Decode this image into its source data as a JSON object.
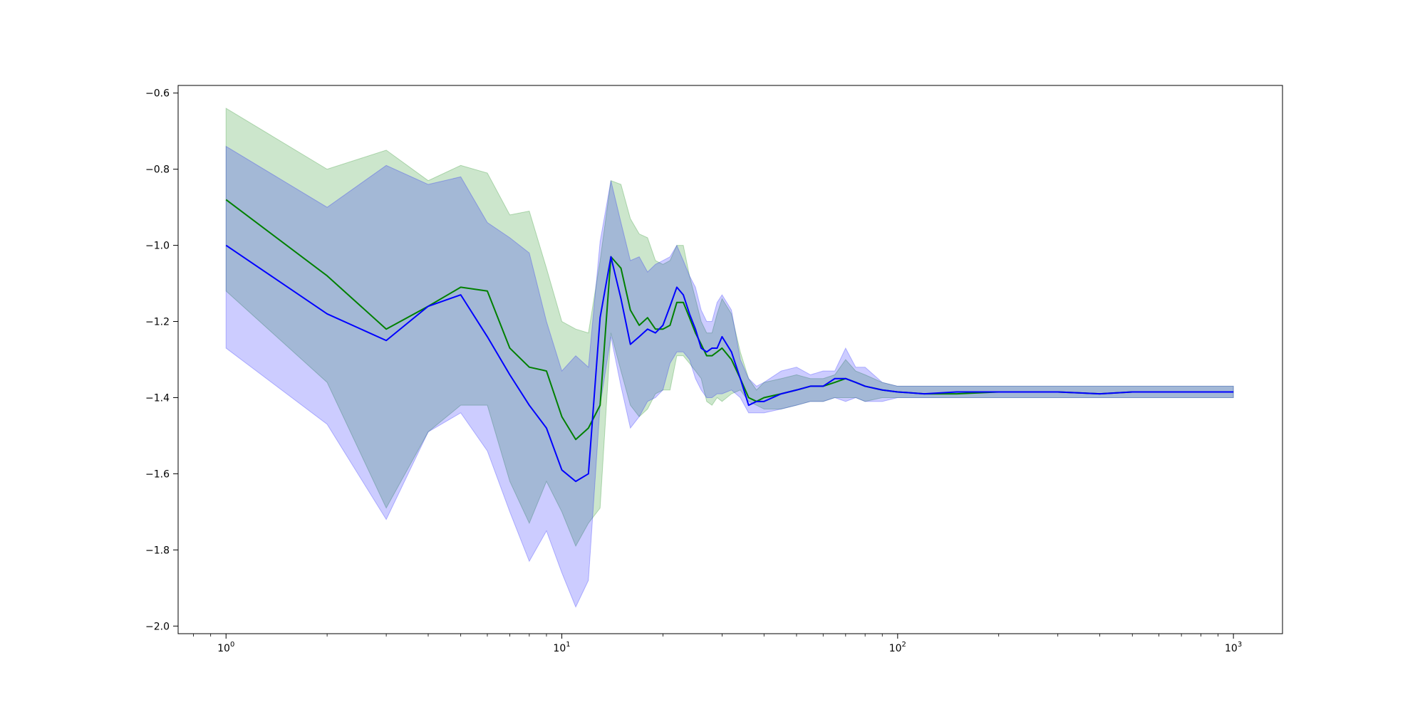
{
  "chart_data": {
    "type": "area",
    "x_scale": "log",
    "xlim": [
      0.72,
      1400
    ],
    "ylim": [
      -2.02,
      -0.58
    ],
    "grid": false,
    "x_ticks": [
      {
        "value": 1,
        "base": "10",
        "exp": "0"
      },
      {
        "value": 10,
        "base": "10",
        "exp": "1"
      },
      {
        "value": 100,
        "base": "10",
        "exp": "2"
      },
      {
        "value": 1000,
        "base": "10",
        "exp": "3"
      }
    ],
    "y_ticks": [
      {
        "value": -0.6,
        "label": "−0.6"
      },
      {
        "value": -0.8,
        "label": "−0.8"
      },
      {
        "value": -1.0,
        "label": "−1.0"
      },
      {
        "value": -1.2,
        "label": "−1.2"
      },
      {
        "value": -1.4,
        "label": "−1.4"
      },
      {
        "value": -1.6,
        "label": "−1.6"
      },
      {
        "value": -1.8,
        "label": "−1.8"
      },
      {
        "value": -2.0,
        "label": "−2.0"
      }
    ],
    "x": [
      1,
      2,
      3,
      4,
      5,
      6,
      7,
      8,
      9,
      10,
      11,
      12,
      13,
      14,
      15,
      16,
      17,
      18,
      19,
      20,
      21,
      22,
      23,
      24,
      25,
      26,
      27,
      28,
      29,
      30,
      32,
      34,
      36,
      38,
      40,
      45,
      50,
      55,
      60,
      65,
      70,
      75,
      80,
      90,
      100,
      120,
      150,
      200,
      300,
      400,
      500,
      700,
      1000
    ],
    "series": [
      {
        "color": "#008000",
        "band_color": "#008000",
        "mean": [
          -0.88,
          -1.08,
          -1.22,
          -1.16,
          -1.11,
          -1.12,
          -1.27,
          -1.32,
          -1.33,
          -1.45,
          -1.51,
          -1.48,
          -1.42,
          -1.03,
          -1.06,
          -1.17,
          -1.21,
          -1.19,
          -1.22,
          -1.22,
          -1.21,
          -1.15,
          -1.15,
          -1.19,
          -1.23,
          -1.26,
          -1.29,
          -1.29,
          -1.28,
          -1.27,
          -1.3,
          -1.35,
          -1.4,
          -1.41,
          -1.4,
          -1.39,
          -1.38,
          -1.37,
          -1.37,
          -1.36,
          -1.35,
          -1.36,
          -1.37,
          -1.38,
          -1.385,
          -1.39,
          -1.39,
          -1.385,
          -1.385,
          -1.39,
          -1.385,
          -1.385,
          -1.385
        ],
        "upper": [
          -0.64,
          -0.8,
          -0.75,
          -0.83,
          -0.79,
          -0.81,
          -0.92,
          -0.91,
          -1.06,
          -1.2,
          -1.22,
          -1.23,
          -1.04,
          -0.83,
          -0.84,
          -0.93,
          -0.97,
          -0.98,
          -1.04,
          -1.05,
          -1.04,
          -1.0,
          -1.0,
          -1.08,
          -1.14,
          -1.2,
          -1.23,
          -1.23,
          -1.18,
          -1.14,
          -1.18,
          -1.28,
          -1.35,
          -1.38,
          -1.36,
          -1.35,
          -1.34,
          -1.35,
          -1.35,
          -1.34,
          -1.3,
          -1.33,
          -1.34,
          -1.36,
          -1.37,
          -1.37,
          -1.37,
          -1.37,
          -1.37,
          -1.37,
          -1.37,
          -1.37,
          -1.37
        ],
        "lower": [
          -1.12,
          -1.36,
          -1.69,
          -1.49,
          -1.42,
          -1.42,
          -1.62,
          -1.73,
          -1.62,
          -1.7,
          -1.79,
          -1.73,
          -1.69,
          -1.23,
          -1.33,
          -1.42,
          -1.45,
          -1.43,
          -1.39,
          -1.38,
          -1.38,
          -1.29,
          -1.29,
          -1.31,
          -1.33,
          -1.35,
          -1.41,
          -1.42,
          -1.4,
          -1.41,
          -1.39,
          -1.38,
          -1.41,
          -1.42,
          -1.43,
          -1.43,
          -1.42,
          -1.41,
          -1.41,
          -1.4,
          -1.4,
          -1.4,
          -1.41,
          -1.4,
          -1.4,
          -1.4,
          -1.4,
          -1.4,
          -1.4,
          -1.4,
          -1.4,
          -1.4,
          -1.4
        ]
      },
      {
        "color": "#0000ff",
        "band_color": "#0000ff",
        "mean": [
          -1.0,
          -1.18,
          -1.25,
          -1.16,
          -1.13,
          -1.24,
          -1.34,
          -1.42,
          -1.48,
          -1.59,
          -1.62,
          -1.6,
          -1.19,
          -1.03,
          -1.14,
          -1.26,
          -1.24,
          -1.22,
          -1.23,
          -1.21,
          -1.16,
          -1.11,
          -1.13,
          -1.18,
          -1.22,
          -1.27,
          -1.28,
          -1.27,
          -1.27,
          -1.24,
          -1.28,
          -1.35,
          -1.42,
          -1.41,
          -1.41,
          -1.39,
          -1.38,
          -1.37,
          -1.37,
          -1.35,
          -1.35,
          -1.36,
          -1.37,
          -1.38,
          -1.385,
          -1.39,
          -1.385,
          -1.385,
          -1.385,
          -1.39,
          -1.385,
          -1.385,
          -1.385
        ],
        "upper": [
          -0.74,
          -0.9,
          -0.79,
          -0.84,
          -0.82,
          -0.94,
          -0.98,
          -1.02,
          -1.2,
          -1.33,
          -1.29,
          -1.32,
          -0.99,
          -0.83,
          -0.94,
          -1.04,
          -1.03,
          -1.07,
          -1.05,
          -1.04,
          -1.03,
          -1.0,
          -1.04,
          -1.08,
          -1.11,
          -1.17,
          -1.2,
          -1.2,
          -1.15,
          -1.13,
          -1.17,
          -1.3,
          -1.35,
          -1.37,
          -1.36,
          -1.33,
          -1.32,
          -1.34,
          -1.33,
          -1.33,
          -1.27,
          -1.32,
          -1.32,
          -1.36,
          -1.37,
          -1.37,
          -1.37,
          -1.37,
          -1.37,
          -1.37,
          -1.37,
          -1.37,
          -1.37
        ],
        "lower": [
          -1.27,
          -1.47,
          -1.72,
          -1.49,
          -1.44,
          -1.54,
          -1.7,
          -1.83,
          -1.75,
          -1.86,
          -1.95,
          -1.88,
          -1.42,
          -1.24,
          -1.37,
          -1.48,
          -1.45,
          -1.41,
          -1.4,
          -1.38,
          -1.31,
          -1.28,
          -1.28,
          -1.3,
          -1.35,
          -1.38,
          -1.4,
          -1.4,
          -1.39,
          -1.39,
          -1.38,
          -1.4,
          -1.44,
          -1.44,
          -1.44,
          -1.43,
          -1.42,
          -1.41,
          -1.41,
          -1.4,
          -1.41,
          -1.4,
          -1.41,
          -1.41,
          -1.4,
          -1.4,
          -1.4,
          -1.4,
          -1.4,
          -1.4,
          -1.4,
          -1.4,
          -1.4
        ]
      }
    ]
  }
}
